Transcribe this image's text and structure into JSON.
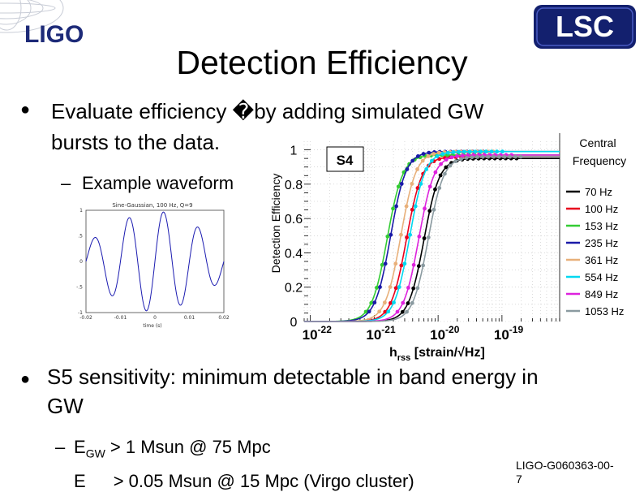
{
  "header": {
    "logo_left": "LIGO",
    "logo_right": "LSC",
    "title": "Detection Efficiency"
  },
  "bullets": {
    "b1_line1": "Evaluate efficiency �by adding simulated GW",
    "b1_line2": "bursts to the data.",
    "sub1": "Example waveform",
    "b2_line1": "S5 sensitivity: minimum detectable in band energy in",
    "b2_line2": "GW",
    "sub2_prefix": "E",
    "sub2_subscript": "GW",
    "sub2_rest": " > 1 Msun @ 75 Mpc",
    "sub3_partial": "E",
    "sub3_rest": "> 0.05 Msun @ 15 Mpc (Virgo cluster)"
  },
  "waveform": {
    "title": "Sine-Gaussian, 100 Hz, Q=9",
    "yticks": [
      "1",
      ".5",
      "0",
      "-.5",
      "-1"
    ],
    "xticks": [
      "-0.02",
      "-0.01",
      "0",
      "0.01",
      "0.02"
    ],
    "xlabel": "time (s)",
    "frequency_hz": 100,
    "q": 9
  },
  "chart_data": {
    "type": "line",
    "ylabel": "Detection Efficiency",
    "xlabel_main": "h",
    "xlabel_sub": "rss",
    "xlabel_rest": " [strain/√Hz]",
    "yticks": [
      "0",
      "0.2",
      "0.4",
      "0.6",
      "0.8",
      "1"
    ],
    "xticks": [
      {
        "base": "10",
        "exp": "-22",
        "value": 1e-22
      },
      {
        "base": "10",
        "exp": "-21",
        "value": 1e-21
      },
      {
        "base": "10",
        "exp": "-20",
        "value": 1e-20
      },
      {
        "base": "10",
        "exp": "-19",
        "value": 1e-19
      }
    ],
    "xscale": "log",
    "xlim": [
      8e-23,
      8e-19
    ],
    "ylim": [
      0,
      1.05
    ],
    "run_label": "S4",
    "legend_title_line1": "Central",
    "legend_title_line2": "Frequency",
    "legend_position": "right",
    "series": [
      {
        "name": "70 Hz",
        "color": "#000000",
        "h50": 6e-21,
        "plateau": 0.95
      },
      {
        "name": "100 Hz",
        "color": "#e8001c",
        "h50": 3.2e-21,
        "plateau": 0.96
      },
      {
        "name": "153 Hz",
        "color": "#33cc33",
        "h50": 1.6e-21,
        "plateau": 0.97
      },
      {
        "name": "235 Hz",
        "color": "#1a1aa8",
        "h50": 1.8e-21,
        "plateau": 0.99
      },
      {
        "name": "361 Hz",
        "color": "#e8b07a",
        "h50": 2.6e-21,
        "plateau": 0.99
      },
      {
        "name": "554 Hz",
        "color": "#00d8f0",
        "h50": 3.6e-21,
        "plateau": 0.99
      },
      {
        "name": "849 Hz",
        "color": "#dd22dd",
        "h50": 5e-21,
        "plateau": 0.97
      },
      {
        "name": "1053 Hz",
        "color": "#8a9aa0",
        "h50": 7e-21,
        "plateau": 0.96
      }
    ]
  },
  "footer": {
    "doc_id_line1": "LIGO-G060363-00-",
    "doc_id_line2": "7"
  }
}
